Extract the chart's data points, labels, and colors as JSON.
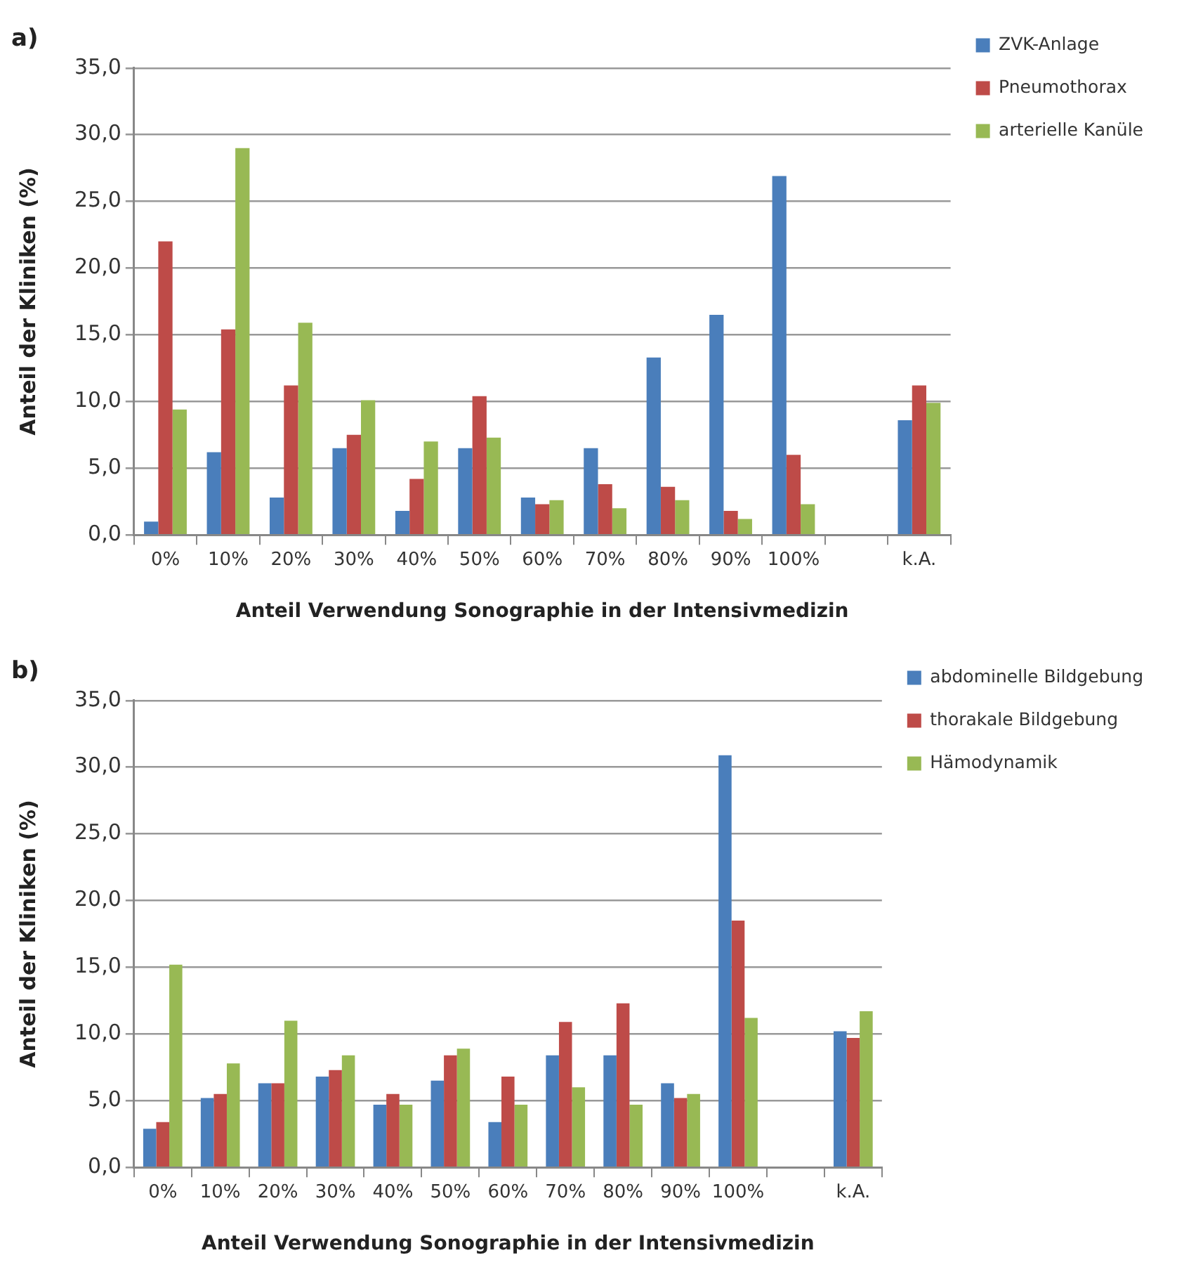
{
  "chart_data": [
    {
      "type": "bar",
      "title": "a)",
      "xlabel": "Anteil Verwendung Sonographie in der Intensivmedizin",
      "ylabel": "Anteil der Kliniken (%)",
      "categories": [
        "0%",
        "10%",
        "20%",
        "30%",
        "40%",
        "50%",
        "60%",
        "70%",
        "80%",
        "90%",
        "100%",
        null,
        "k.A."
      ],
      "series": [
        {
          "name": "ZVK-Anlage",
          "color": "#4a7ebb",
          "values": [
            1.0,
            6.2,
            2.8,
            6.5,
            1.8,
            6.5,
            2.8,
            6.5,
            13.3,
            16.5,
            26.9,
            null,
            8.6
          ]
        },
        {
          "name": "Pneumothorax",
          "color": "#be4b48",
          "values": [
            22.0,
            15.4,
            11.2,
            7.5,
            4.2,
            10.4,
            2.3,
            3.8,
            3.6,
            1.8,
            6.0,
            null,
            11.2
          ]
        },
        {
          "name": "arterielle Kanüle",
          "color": "#98b954",
          "values": [
            9.4,
            29.0,
            15.9,
            10.1,
            7.0,
            7.3,
            2.6,
            2.0,
            2.6,
            1.2,
            2.3,
            null,
            9.9
          ]
        }
      ],
      "ylim": [
        0,
        35
      ],
      "yticks": [
        {
          "value": 0,
          "label": "0,0"
        },
        {
          "value": 5,
          "label": "5,0"
        },
        {
          "value": 10,
          "label": "10,0"
        },
        {
          "value": 15,
          "label": "15,0"
        },
        {
          "value": 20,
          "label": "20,0"
        },
        {
          "value": 25,
          "label": "25,0"
        },
        {
          "value": 30,
          "label": "30,0"
        },
        {
          "value": 35,
          "label": "35,0"
        }
      ],
      "grid": "y",
      "legend": "top right"
    },
    {
      "type": "bar",
      "title": "b)",
      "xlabel": "Anteil Verwendung Sonographie in der Intensivmedizin",
      "ylabel": "Anteil der Kliniken (%)",
      "categories": [
        "0%",
        "10%",
        "20%",
        "30%",
        "40%",
        "50%",
        "60%",
        "70%",
        "80%",
        "90%",
        "100%",
        null,
        "k.A."
      ],
      "series": [
        {
          "name": "abdominelle Bildgebung",
          "color": "#4a7ebb",
          "values": [
            2.9,
            5.2,
            6.3,
            6.8,
            4.7,
            6.5,
            3.4,
            8.4,
            8.4,
            6.3,
            30.9,
            null,
            10.2
          ]
        },
        {
          "name": "thorakale Bildgebung",
          "color": "#be4b48",
          "values": [
            3.4,
            5.5,
            6.3,
            7.3,
            5.5,
            8.4,
            6.8,
            10.9,
            12.3,
            5.2,
            18.5,
            null,
            9.7
          ]
        },
        {
          "name": "Hämodynamik",
          "color": "#98b954",
          "values": [
            15.2,
            7.8,
            11.0,
            8.4,
            4.7,
            8.9,
            4.7,
            6.0,
            4.7,
            5.5,
            11.2,
            null,
            11.7
          ]
        }
      ],
      "ylim": [
        0,
        35
      ],
      "yticks": [
        {
          "value": 0,
          "label": "0,0"
        },
        {
          "value": 5,
          "label": "5,0"
        },
        {
          "value": 10,
          "label": "10,0"
        },
        {
          "value": 15,
          "label": "15,0"
        },
        {
          "value": 20,
          "label": "20,0"
        },
        {
          "value": 25,
          "label": "25,0"
        },
        {
          "value": 30,
          "label": "30,0"
        },
        {
          "value": 35,
          "label": "35,0"
        }
      ],
      "grid": "y",
      "legend": "top right"
    }
  ]
}
